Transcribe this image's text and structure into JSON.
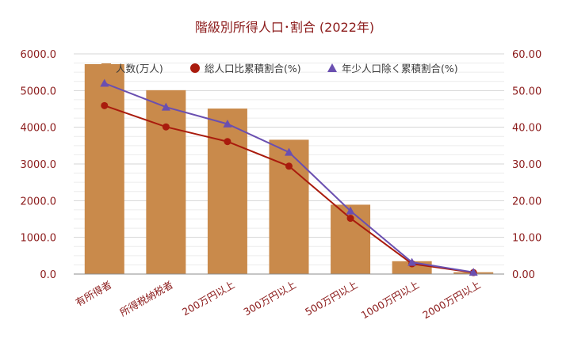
{
  "chart_data": {
    "type": "bar",
    "title": "階級別所得人口･割合 (2022年)",
    "categories": [
      "有所得者",
      "所得税納税者",
      "200万円以上",
      "300万円以上",
      "500万円以上",
      "1000万円以上",
      "2000万円以上"
    ],
    "series": [
      {
        "name": "人数(万人)",
        "type": "bar",
        "axis": "left",
        "values": [
          5720,
          5010,
          4510,
          3660,
          1890,
          350,
          50
        ]
      },
      {
        "name": "総人口比累積割合(%)",
        "type": "line",
        "axis": "right",
        "marker": "circle",
        "values": [
          45.9,
          40.1,
          36.1,
          29.4,
          15.2,
          2.8,
          0.4
        ]
      },
      {
        "name": "年少人口除く累積割合(%)",
        "type": "line",
        "axis": "right",
        "marker": "triangle",
        "values": [
          52.0,
          45.5,
          40.9,
          33.2,
          17.2,
          3.2,
          0.5
        ]
      }
    ],
    "y_left": {
      "min": 0,
      "max": 6000,
      "major_step": 1000,
      "minor_step": 250,
      "tick_labels": [
        "0.0",
        "1000.0",
        "2000.0",
        "3000.0",
        "4000.0",
        "5000.0",
        "6000.0"
      ]
    },
    "y_right": {
      "min": 0,
      "max": 60,
      "tick_labels": [
        "0.00",
        "10.00",
        "20.00",
        "30.00",
        "40.00",
        "50.00",
        "60.00"
      ]
    },
    "legend_position": "top",
    "grid": true,
    "colors": {
      "bar": "#c98a4b",
      "line1": "#a91b0d",
      "line2": "#6a4fb0",
      "text": "#8b1a1a",
      "grid": "#dddddd",
      "baseline": "#8c8c8c"
    }
  }
}
